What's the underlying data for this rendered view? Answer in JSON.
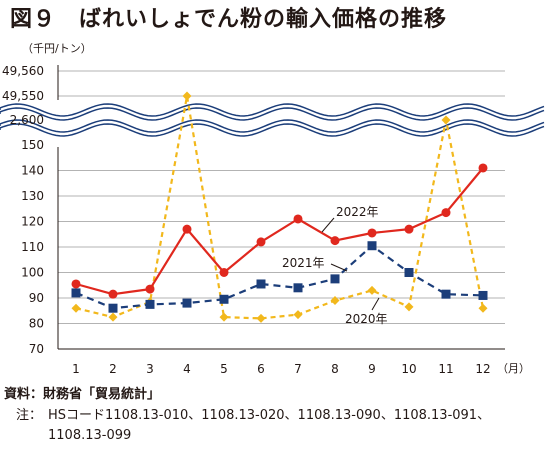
{
  "title": "図９　ばれいしょでん粉の輸入価格の推移",
  "unit_label": "（千円/トン）",
  "month_unit": "（月）",
  "source": "資料：財務省「貿易統計」",
  "note_label": "注：",
  "note_text": "HSコード1108.13-010、1108.13-020、1108.13-090、1108.13-091、",
  "note_text2": "1108.13-099",
  "chart_data": {
    "type": "line",
    "x": [
      1,
      2,
      3,
      4,
      5,
      6,
      7,
      8,
      9,
      10,
      11,
      12
    ],
    "xticks": [
      "1",
      "2",
      "3",
      "4",
      "5",
      "6",
      "7",
      "8",
      "9",
      "10",
      "11",
      "12"
    ],
    "yticks": [
      "70",
      "80",
      "90",
      "100",
      "110",
      "120",
      "130",
      "140",
      "150"
    ],
    "ybreak_ticks": [
      "2,600",
      "49,550",
      "49,560"
    ],
    "ylim": [
      70,
      150
    ],
    "axis_break": true,
    "series": [
      {
        "name": "2022年",
        "color": "#e0281e",
        "marker": "circle",
        "dash": "solid",
        "values": [
          95.5,
          91.5,
          93.5,
          117,
          100,
          112,
          121,
          112.5,
          115.5,
          117,
          123.5,
          141
        ]
      },
      {
        "name": "2021年",
        "color": "#1c3e7a",
        "marker": "square",
        "dash": "dashed",
        "values": [
          92,
          86,
          87.5,
          88,
          89.5,
          95.5,
          94,
          97.5,
          110.5,
          100,
          91.5,
          91
        ]
      },
      {
        "name": "2020年",
        "color": "#f2b81c",
        "marker": "diamond",
        "dash": "dashed",
        "values": [
          86,
          82.5,
          88.5,
          49550,
          82.5,
          82,
          83.5,
          89,
          93,
          86.5,
          2600,
          86
        ]
      }
    ]
  }
}
